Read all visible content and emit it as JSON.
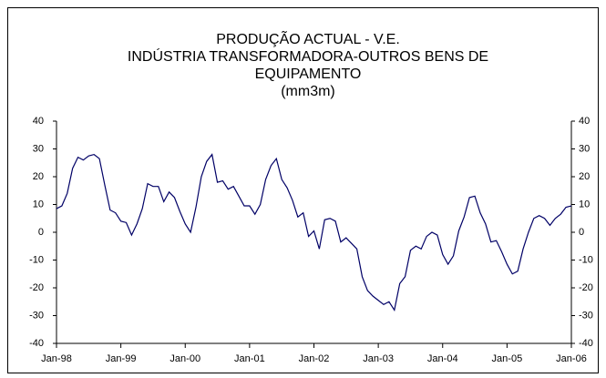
{
  "chart_data": {
    "type": "line",
    "title": [
      "PRODUÇÃO ACTUAL - V.E.",
      "INDÚSTRIA TRANSFORMADORA-OUTROS BENS DE",
      "EQUIPAMENTO",
      "(mm3m)"
    ],
    "categories": [
      "Jan-98",
      null,
      null,
      null,
      null,
      null,
      null,
      null,
      null,
      null,
      null,
      null,
      "Jan-99",
      null,
      null,
      null,
      null,
      null,
      null,
      null,
      null,
      null,
      null,
      null,
      "Jan-00",
      null,
      null,
      null,
      null,
      null,
      null,
      null,
      null,
      null,
      null,
      null,
      "Jan-01",
      null,
      null,
      null,
      null,
      null,
      null,
      null,
      null,
      null,
      null,
      null,
      "Jan-02",
      null,
      null,
      null,
      null,
      null,
      null,
      null,
      null,
      null,
      null,
      null,
      "Jan-03",
      null,
      null,
      null,
      null,
      null,
      null,
      null,
      null,
      null,
      null,
      null,
      "Jan-04",
      null,
      null,
      null,
      null,
      null,
      null,
      null,
      null,
      null,
      null,
      null,
      "Jan-05",
      null,
      null,
      null,
      null,
      null,
      null,
      null,
      null,
      null,
      null,
      null,
      "Jan-06"
    ],
    "values": [
      8.5,
      9.5,
      14,
      23,
      27,
      26,
      27.5,
      28,
      26.5,
      17,
      8,
      7,
      4,
      3.5,
      -1,
      3,
      8.5,
      17.5,
      16.5,
      16.5,
      11,
      14.5,
      12.5,
      7.5,
      3,
      0,
      9,
      20,
      25.5,
      28,
      18,
      18.5,
      15.5,
      16.5,
      13,
      9.5,
      9.5,
      6.5,
      10,
      19,
      24,
      26.5,
      19,
      16,
      11.5,
      5.5,
      7,
      -1.5,
      0.5,
      -6,
      4.5,
      5,
      4,
      -3.5,
      -2,
      -4,
      -6,
      -16,
      -21,
      -23,
      -24.5,
      -26,
      -25,
      -28,
      -18.5,
      -16,
      -6.5,
      -5,
      -6,
      -1.5,
      0,
      -1,
      -8,
      -11.5,
      -8.5,
      0.5,
      5.5,
      12.5,
      13,
      7,
      3,
      -3.5,
      -3,
      -7,
      -11.5,
      -15,
      -14,
      -6,
      0,
      5,
      6,
      5,
      2.5,
      5,
      6.5,
      9,
      9.5
    ],
    "color": "#000066",
    "ylim": [
      -40,
      40
    ],
    "yticks": [
      -40,
      -30,
      -20,
      -10,
      0,
      10,
      20,
      30,
      40
    ],
    "grid": false
  }
}
